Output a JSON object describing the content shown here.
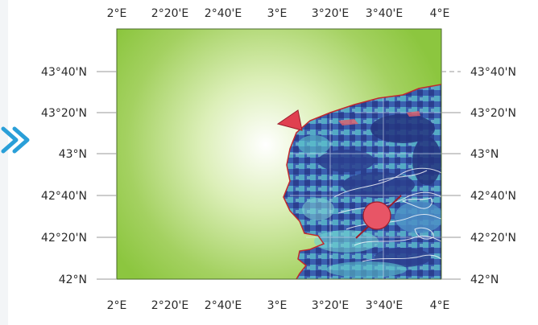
{
  "map": {
    "top_axis_labels": [
      "2°E",
      "2°20'E",
      "2°40'E",
      "3°E",
      "3°20'E",
      "3°40'E",
      "4°E"
    ],
    "bottom_axis_labels": [
      "2°E",
      "2°20'E",
      "2°40'E",
      "3°E",
      "3°20'E",
      "3°40'E",
      "4°E"
    ],
    "left_axis_labels": [
      "43°40'N",
      "43°20'N",
      "43°N",
      "42°40'N",
      "42°20'N",
      "42°N"
    ],
    "right_axis_labels": [
      "43°40'N",
      "43°20'N",
      "43°N",
      "42°40'N",
      "42°20'N",
      "42°N"
    ],
    "colors": {
      "land_outer": "#8cc63f",
      "land_glow": "#ffffff",
      "sea_deep": "#2b3f8f",
      "sea_mid": "#3f6fb8",
      "sea_shallow": "#5cc2cc",
      "coast_line": "#c0282e",
      "marker_fill": "#e85566",
      "marker_stroke": "#9b1c2c",
      "arrow_blue": "#2a9fd8"
    },
    "icons": {
      "triangle_marker": "triangle-marker-icon",
      "circle_marker": "epicenter-circle-icon",
      "side_arrow": "double-chevron-right-icon"
    }
  }
}
